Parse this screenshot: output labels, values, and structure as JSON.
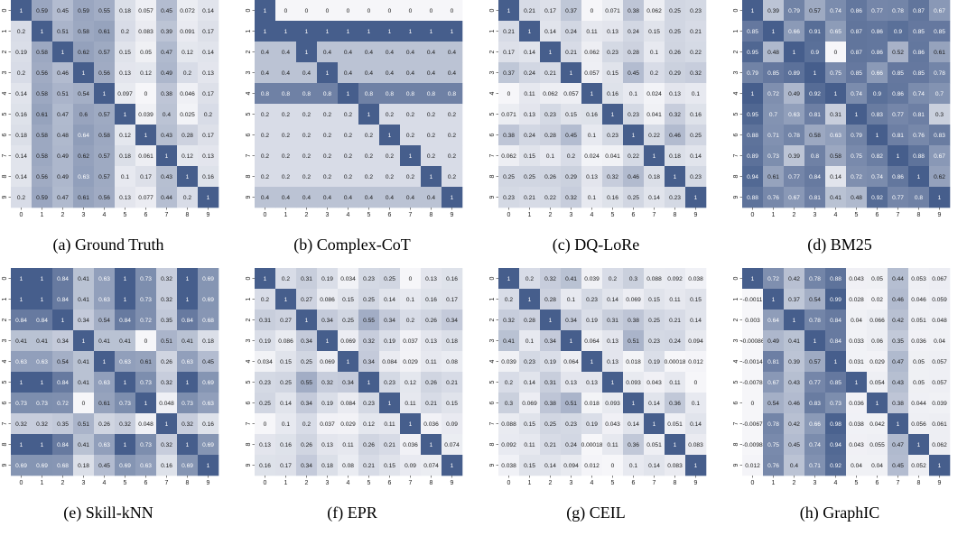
{
  "colors": {
    "low": "#f6f6f9",
    "mid": "#acb6cb",
    "high": "#465e8c"
  },
  "chart_data": [
    {
      "type": "heatmap",
      "title": "(a) Ground Truth",
      "x_ticks": [
        "0",
        "1",
        "2",
        "3",
        "4",
        "5",
        "6",
        "7",
        "8",
        "9"
      ],
      "y_ticks": [
        "0",
        "1",
        "2",
        "3",
        "4",
        "5",
        "6",
        "7",
        "8",
        "9"
      ],
      "values": [
        [
          1,
          0.59,
          0.45,
          0.59,
          0.55,
          0.18,
          0.057,
          0.45,
          0.072,
          0.14
        ],
        [
          0.2,
          1,
          0.51,
          0.58,
          0.61,
          0.2,
          0.083,
          0.39,
          0.091,
          0.17
        ],
        [
          0.19,
          0.58,
          1,
          0.62,
          0.57,
          0.15,
          0.05,
          0.47,
          0.12,
          0.14
        ],
        [
          0.2,
          0.56,
          0.46,
          1,
          0.56,
          0.13,
          0.12,
          0.49,
          0.2,
          0.13
        ],
        [
          0.14,
          0.58,
          0.51,
          0.54,
          1,
          0.097,
          0,
          0.38,
          0.046,
          0.17
        ],
        [
          0.16,
          0.61,
          0.47,
          0.6,
          0.57,
          1,
          0.039,
          0.4,
          0.025,
          0.2
        ],
        [
          0.18,
          0.58,
          0.48,
          0.64,
          0.58,
          0.12,
          1,
          0.43,
          0.28,
          0.17
        ],
        [
          0.14,
          0.58,
          0.49,
          0.62,
          0.57,
          0.18,
          0.061,
          1,
          0.12,
          0.13
        ],
        [
          0.14,
          0.56,
          0.49,
          0.63,
          0.57,
          0.1,
          0.17,
          0.43,
          1,
          0.16
        ],
        [
          0.2,
          0.59,
          0.47,
          0.61,
          0.56,
          0.13,
          0.077,
          0.44,
          0.2,
          1
        ]
      ]
    },
    {
      "type": "heatmap",
      "title": "(b) Complex-CoT",
      "x_ticks": [
        "0",
        "1",
        "2",
        "3",
        "4",
        "5",
        "6",
        "7",
        "8",
        "9"
      ],
      "y_ticks": [
        "0",
        "1",
        "2",
        "3",
        "4",
        "5",
        "6",
        "7",
        "8",
        "9"
      ],
      "values": [
        [
          1,
          0,
          0,
          0,
          0,
          0,
          0,
          0,
          0,
          0
        ],
        [
          1,
          1,
          1,
          1,
          1,
          1,
          1,
          1,
          1,
          1
        ],
        [
          0.4,
          0.4,
          1,
          0.4,
          0.4,
          0.4,
          0.4,
          0.4,
          0.4,
          0.4
        ],
        [
          0.4,
          0.4,
          0.4,
          1,
          0.4,
          0.4,
          0.4,
          0.4,
          0.4,
          0.4
        ],
        [
          0.8,
          0.8,
          0.8,
          0.8,
          1,
          0.8,
          0.8,
          0.8,
          0.8,
          0.8
        ],
        [
          0.2,
          0.2,
          0.2,
          0.2,
          0.2,
          1,
          0.2,
          0.2,
          0.2,
          0.2
        ],
        [
          0.2,
          0.2,
          0.2,
          0.2,
          0.2,
          0.2,
          1,
          0.2,
          0.2,
          0.2
        ],
        [
          0.2,
          0.2,
          0.2,
          0.2,
          0.2,
          0.2,
          0.2,
          1,
          0.2,
          0.2
        ],
        [
          0.2,
          0.2,
          0.2,
          0.2,
          0.2,
          0.2,
          0.2,
          0.2,
          1,
          0.2
        ],
        [
          0.4,
          0.4,
          0.4,
          0.4,
          0.4,
          0.4,
          0.4,
          0.4,
          0.4,
          1
        ]
      ]
    },
    {
      "type": "heatmap",
      "title": "(c) DQ-LoRe",
      "x_ticks": [
        "0",
        "1",
        "2",
        "3",
        "4",
        "5",
        "6",
        "7",
        "8",
        "9"
      ],
      "y_ticks": [
        "0",
        "1",
        "2",
        "3",
        "4",
        "5",
        "6",
        "7",
        "8",
        "9"
      ],
      "values": [
        [
          1,
          0.21,
          0.17,
          0.37,
          0,
          0.071,
          0.38,
          0.062,
          0.25,
          0.23
        ],
        [
          0.21,
          1,
          0.14,
          0.24,
          0.11,
          0.13,
          0.24,
          0.15,
          0.25,
          0.21
        ],
        [
          0.17,
          0.14,
          1,
          0.21,
          0.062,
          0.23,
          0.28,
          0.1,
          0.26,
          0.22
        ],
        [
          0.37,
          0.24,
          0.21,
          1,
          0.057,
          0.15,
          0.45,
          0.2,
          0.29,
          0.32
        ],
        [
          0,
          0.11,
          0.062,
          0.057,
          1,
          0.16,
          0.1,
          0.024,
          0.13,
          0.1
        ],
        [
          0.071,
          0.13,
          0.23,
          0.15,
          0.16,
          1,
          0.23,
          0.041,
          0.32,
          0.16
        ],
        [
          0.38,
          0.24,
          0.28,
          0.45,
          0.1,
          0.23,
          1,
          0.22,
          0.46,
          0.25
        ],
        [
          0.062,
          0.15,
          0.1,
          0.2,
          0.024,
          0.041,
          0.22,
          1,
          0.18,
          0.14
        ],
        [
          0.25,
          0.25,
          0.26,
          0.29,
          0.13,
          0.32,
          0.46,
          0.18,
          1,
          0.23
        ],
        [
          0.23,
          0.21,
          0.22,
          0.32,
          0.1,
          0.16,
          0.25,
          0.14,
          0.23,
          1
        ]
      ]
    },
    {
      "type": "heatmap",
      "title": "(d) BM25",
      "x_ticks": [
        "0",
        "1",
        "2",
        "3",
        "4",
        "5",
        "6",
        "7",
        "8",
        "9"
      ],
      "y_ticks": [
        "0",
        "1",
        "2",
        "3",
        "4",
        "5",
        "6",
        "7",
        "8",
        "9"
      ],
      "values": [
        [
          1,
          0.39,
          0.79,
          0.57,
          0.74,
          0.86,
          0.77,
          0.78,
          0.87,
          0.67
        ],
        [
          0.85,
          1,
          0.66,
          0.91,
          0.65,
          0.87,
          0.86,
          0.9,
          0.85,
          0.85
        ],
        [
          0.95,
          0.48,
          1,
          0.9,
          0,
          0.87,
          0.86,
          0.52,
          0.86,
          0.61
        ],
        [
          0.79,
          0.85,
          0.89,
          1,
          0.75,
          0.85,
          0.66,
          0.85,
          0.85,
          0.78
        ],
        [
          1,
          0.72,
          0.49,
          0.92,
          1,
          0.74,
          0.9,
          0.86,
          0.74,
          0.7
        ],
        [
          0.95,
          0.7,
          0.63,
          0.81,
          0.31,
          1,
          0.83,
          0.77,
          0.81,
          0.3
        ],
        [
          0.88,
          0.71,
          0.78,
          0.58,
          0.63,
          0.79,
          1,
          0.81,
          0.76,
          0.83
        ],
        [
          0.89,
          0.73,
          0.39,
          0.8,
          0.58,
          0.75,
          0.82,
          1,
          0.88,
          0.67
        ],
        [
          0.94,
          0.61,
          0.77,
          0.84,
          0.14,
          0.72,
          0.74,
          0.86,
          1,
          0.62
        ],
        [
          0.88,
          0.76,
          0.67,
          0.81,
          0.41,
          0.48,
          0.92,
          0.77,
          0.8,
          1
        ]
      ]
    },
    {
      "type": "heatmap",
      "title": "(e) Skill-kNN",
      "x_ticks": [
        "0",
        "1",
        "2",
        "3",
        "4",
        "5",
        "6",
        "7",
        "8",
        "9"
      ],
      "y_ticks": [
        "0",
        "1",
        "2",
        "3",
        "4",
        "5",
        "6",
        "7",
        "8",
        "9"
      ],
      "values": [
        [
          1,
          1,
          0.84,
          0.41,
          0.63,
          1,
          0.73,
          0.32,
          1,
          0.69
        ],
        [
          1,
          1,
          0.84,
          0.41,
          0.63,
          1,
          0.73,
          0.32,
          1,
          0.69
        ],
        [
          0.84,
          0.84,
          1,
          0.34,
          0.54,
          0.84,
          0.72,
          0.35,
          0.84,
          0.68
        ],
        [
          0.41,
          0.41,
          0.34,
          1,
          0.41,
          0.41,
          0,
          0.51,
          0.41,
          0.18
        ],
        [
          0.63,
          0.63,
          0.54,
          0.41,
          1,
          0.63,
          0.61,
          0.26,
          0.63,
          0.45
        ],
        [
          1,
          1,
          0.84,
          0.41,
          0.63,
          1,
          0.73,
          0.32,
          1,
          0.69
        ],
        [
          0.73,
          0.73,
          0.72,
          0,
          0.61,
          0.73,
          1,
          0.048,
          0.73,
          0.63
        ],
        [
          0.32,
          0.32,
          0.35,
          0.51,
          0.26,
          0.32,
          0.048,
          1,
          0.32,
          0.16
        ],
        [
          1,
          1,
          0.84,
          0.41,
          0.63,
          1,
          0.73,
          0.32,
          1,
          0.69
        ],
        [
          0.69,
          0.69,
          0.68,
          0.18,
          0.45,
          0.69,
          0.63,
          0.16,
          0.69,
          1
        ]
      ]
    },
    {
      "type": "heatmap",
      "title": "(f) EPR",
      "x_ticks": [
        "0",
        "1",
        "2",
        "3",
        "4",
        "5",
        "6",
        "7",
        "8",
        "9"
      ],
      "y_ticks": [
        "0",
        "1",
        "2",
        "3",
        "4",
        "5",
        "6",
        "7",
        "8",
        "9"
      ],
      "values": [
        [
          1,
          0.2,
          0.31,
          0.19,
          0.034,
          0.23,
          0.25,
          0,
          0.13,
          0.16
        ],
        [
          0.2,
          1,
          0.27,
          0.086,
          0.15,
          0.25,
          0.14,
          0.1,
          0.16,
          0.17
        ],
        [
          0.31,
          0.27,
          1,
          0.34,
          0.25,
          0.55,
          0.34,
          0.2,
          0.26,
          0.34
        ],
        [
          0.19,
          0.086,
          0.34,
          1,
          0.069,
          0.32,
          0.19,
          0.037,
          0.13,
          0.18
        ],
        [
          0.034,
          0.15,
          0.25,
          0.069,
          1,
          0.34,
          0.084,
          0.029,
          0.11,
          0.08
        ],
        [
          0.23,
          0.25,
          0.55,
          0.32,
          0.34,
          1,
          0.23,
          0.12,
          0.26,
          0.21
        ],
        [
          0.25,
          0.14,
          0.34,
          0.19,
          0.084,
          0.23,
          1,
          0.11,
          0.21,
          0.15
        ],
        [
          0,
          0.1,
          0.2,
          0.037,
          0.029,
          0.12,
          0.11,
          1,
          0.036,
          0.09
        ],
        [
          0.13,
          0.16,
          0.26,
          0.13,
          0.11,
          0.26,
          0.21,
          0.036,
          1,
          0.074
        ],
        [
          0.16,
          0.17,
          0.34,
          0.18,
          0.08,
          0.21,
          0.15,
          0.09,
          0.074,
          1
        ]
      ]
    },
    {
      "type": "heatmap",
      "title": "(g) CEIL",
      "x_ticks": [
        "0",
        "1",
        "2",
        "3",
        "4",
        "5",
        "6",
        "7",
        "8",
        "9"
      ],
      "y_ticks": [
        "0",
        "1",
        "2",
        "3",
        "4",
        "5",
        "6",
        "7",
        "8",
        "9"
      ],
      "values": [
        [
          1,
          0.2,
          0.32,
          0.41,
          0.039,
          0.2,
          0.3,
          0.088,
          0.092,
          0.038
        ],
        [
          0.2,
          1,
          0.28,
          0.1,
          0.23,
          0.14,
          0.069,
          0.15,
          0.11,
          0.15
        ],
        [
          0.32,
          0.28,
          1,
          0.34,
          0.19,
          0.31,
          0.38,
          0.25,
          0.21,
          0.14
        ],
        [
          0.41,
          0.1,
          0.34,
          1,
          0.064,
          0.13,
          0.51,
          0.23,
          0.24,
          0.094
        ],
        [
          0.039,
          0.23,
          0.19,
          0.064,
          1,
          0.13,
          0.018,
          0.19,
          0.00018,
          0.012
        ],
        [
          0.2,
          0.14,
          0.31,
          0.13,
          0.13,
          1,
          0.093,
          0.043,
          0.11,
          0
        ],
        [
          0.3,
          0.069,
          0.38,
          0.51,
          0.018,
          0.093,
          1,
          0.14,
          0.36,
          0.1
        ],
        [
          0.088,
          0.15,
          0.25,
          0.23,
          0.19,
          0.043,
          0.14,
          1,
          0.051,
          0.14
        ],
        [
          0.092,
          0.11,
          0.21,
          0.24,
          0.00018,
          0.11,
          0.36,
          0.051,
          1,
          0.083
        ],
        [
          0.038,
          0.15,
          0.14,
          0.094,
          0.012,
          0,
          0.1,
          0.14,
          0.083,
          1
        ]
      ]
    },
    {
      "type": "heatmap",
      "title": "(h) GraphIC",
      "x_ticks": [
        "0",
        "1",
        "2",
        "3",
        "4",
        "5",
        "6",
        "7",
        "8",
        "9"
      ],
      "y_ticks": [
        "0",
        "1",
        "2",
        "3",
        "4",
        "5",
        "6",
        "7",
        "8",
        "9"
      ],
      "values": [
        [
          1,
          0.72,
          0.42,
          0.78,
          0.88,
          0.043,
          0.05,
          0.44,
          0.053,
          0.067
        ],
        [
          -0.0011,
          1,
          0.37,
          0.54,
          0.99,
          0.028,
          0.02,
          0.46,
          0.046,
          0.059
        ],
        [
          0.003,
          0.64,
          1,
          0.78,
          0.84,
          0.04,
          0.066,
          0.42,
          0.051,
          0.048
        ],
        [
          -0.00086,
          0.49,
          0.41,
          1,
          0.84,
          0.033,
          0.06,
          0.35,
          0.036,
          0.04
        ],
        [
          -0.0014,
          0.81,
          0.39,
          0.57,
          1,
          0.031,
          0.029,
          0.47,
          0.05,
          0.057
        ],
        [
          -0.0078,
          0.67,
          0.43,
          0.77,
          0.85,
          1,
          0.054,
          0.43,
          0.05,
          0.057
        ],
        [
          0,
          0.54,
          0.46,
          0.83,
          0.73,
          0.036,
          1,
          0.38,
          0.044,
          0.039
        ],
        [
          -0.0067,
          0.78,
          0.42,
          0.66,
          0.98,
          0.038,
          0.042,
          1,
          0.056,
          0.061
        ],
        [
          -0.0098,
          0.75,
          0.45,
          0.74,
          0.94,
          0.043,
          0.055,
          0.47,
          1,
          0.062
        ],
        [
          0.012,
          0.76,
          0.4,
          0.71,
          0.92,
          0.04,
          0.04,
          0.45,
          0.052,
          1
        ]
      ]
    }
  ]
}
